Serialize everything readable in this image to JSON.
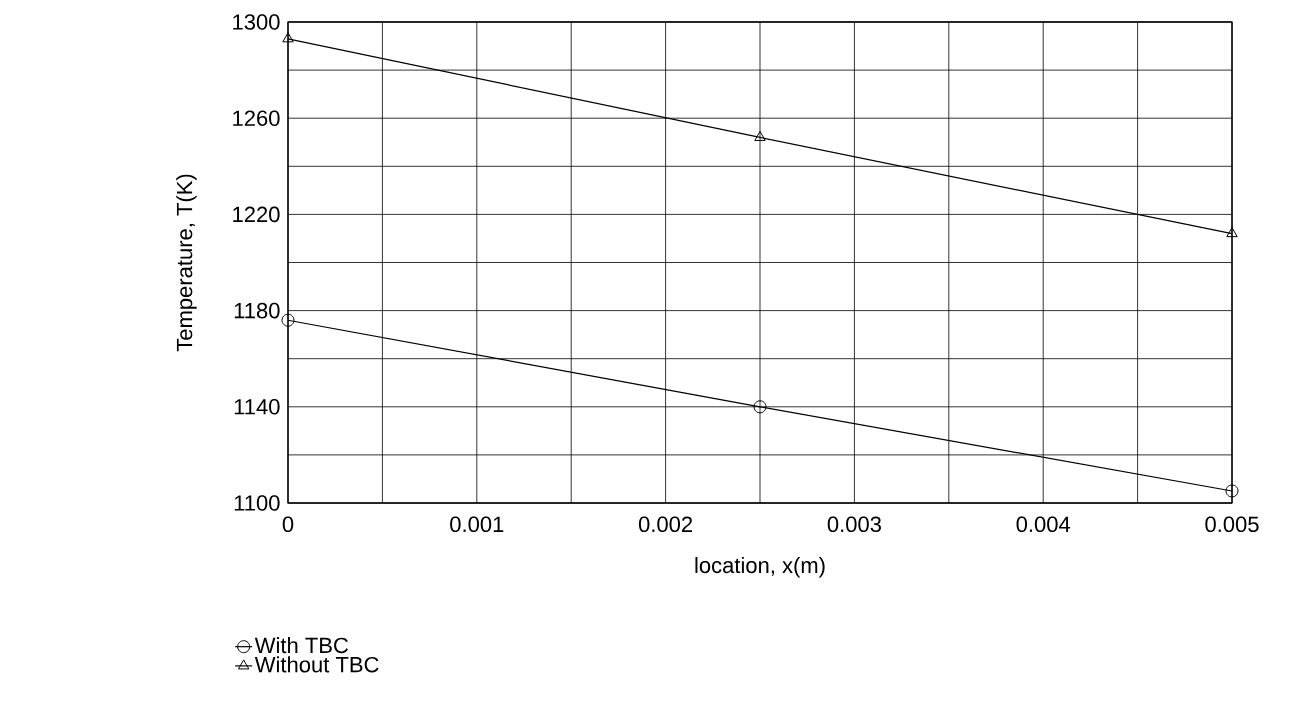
{
  "chart_data": {
    "type": "line",
    "xlabel": "location, x(m)",
    "ylabel": "Temperature, T(K)",
    "x": [
      0,
      0.0025,
      0.005
    ],
    "series": [
      {
        "name": "With TBC",
        "color": "#000000",
        "marker": "circle",
        "values": [
          1176,
          1140,
          1105
        ]
      },
      {
        "name": "Without TBC",
        "color": "#000000",
        "marker": "triangle",
        "values": [
          1293,
          1252,
          1212
        ]
      }
    ],
    "xlim": [
      0,
      0.005
    ],
    "ylim": [
      1100,
      1300
    ],
    "xticks": [
      0,
      {
        "value": 0.0005,
        "label": null
      },
      0.001,
      {
        "value": 0.0015,
        "label": null
      },
      0.002,
      {
        "value": 0.0025,
        "label": null
      },
      0.003,
      {
        "value": 0.0035,
        "label": null
      },
      0.004,
      {
        "value": 0.0045,
        "label": null
      },
      0.005
    ],
    "yticks": [
      1100,
      {
        "value": 1120,
        "label": null
      },
      1140,
      {
        "value": 1160,
        "label": null
      },
      1180,
      {
        "value": 1200,
        "label": null
      },
      1220,
      {
        "value": 1240,
        "label": null
      },
      1260,
      {
        "value": 1280,
        "label": null
      },
      1300
    ],
    "grid": true,
    "legend": "bottom",
    "line_style": "solid"
  }
}
